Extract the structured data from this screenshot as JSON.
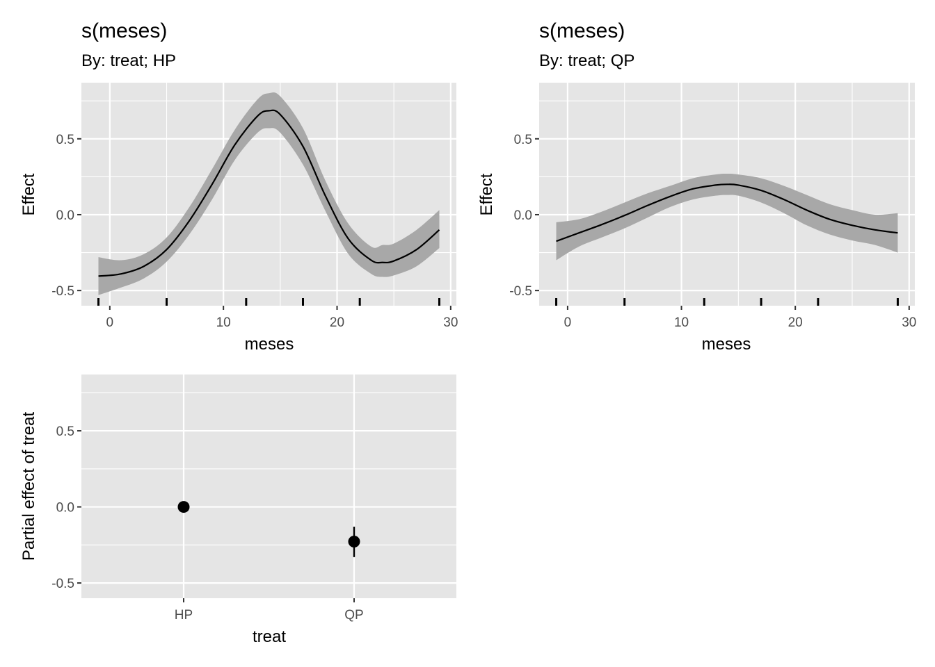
{
  "chart_data": [
    {
      "type": "line",
      "title": "s(meses)",
      "subtitle": "By: treat; HP",
      "xlabel": "meses",
      "ylabel": "Effect",
      "xlim": [
        -2.5,
        30.5
      ],
      "ylim": [
        -0.6,
        0.87
      ],
      "xticks": [
        0,
        10,
        20,
        30
      ],
      "yticks": [
        -0.5,
        0.0,
        0.5
      ],
      "ytick_labels": [
        "-0.5",
        "0.0",
        "0.5"
      ],
      "grid": true,
      "colors": {
        "panel": "#e5e5e5",
        "grid": "#ffffff",
        "ribbon": "#a8a8a8",
        "line": "#000000"
      },
      "series": [
        {
          "x": [
            -1,
            1,
            3,
            5,
            7,
            9,
            11,
            13,
            14,
            15,
            17,
            19,
            21,
            23,
            24,
            25,
            27,
            29
          ],
          "y": [
            -0.405,
            -0.39,
            -0.34,
            -0.23,
            -0.04,
            0.2,
            0.46,
            0.65,
            0.685,
            0.66,
            0.45,
            0.12,
            -0.16,
            -0.3,
            -0.315,
            -0.305,
            -0.23,
            -0.1
          ],
          "lower": [
            -0.53,
            -0.48,
            -0.42,
            -0.31,
            -0.13,
            0.1,
            0.36,
            0.54,
            0.57,
            0.54,
            0.33,
            0.02,
            -0.26,
            -0.39,
            -0.41,
            -0.4,
            -0.34,
            -0.22
          ],
          "upper": [
            -0.28,
            -0.3,
            -0.26,
            -0.15,
            0.05,
            0.3,
            0.56,
            0.76,
            0.8,
            0.78,
            0.57,
            0.22,
            -0.06,
            -0.21,
            -0.2,
            -0.19,
            -0.1,
            0.03
          ]
        }
      ],
      "rug": [
        -1,
        5,
        12,
        17,
        22,
        29
      ]
    },
    {
      "type": "line",
      "title": "s(meses)",
      "subtitle": "By: treat; QP",
      "xlabel": "meses",
      "ylabel": "Effect",
      "xlim": [
        -2.5,
        30.5
      ],
      "ylim": [
        -0.6,
        0.87
      ],
      "xticks": [
        0,
        10,
        20,
        30
      ],
      "yticks": [
        -0.5,
        0.0,
        0.5
      ],
      "ytick_labels": [
        "-0.5",
        "0.0",
        "0.5"
      ],
      "grid": true,
      "colors": {
        "panel": "#e5e5e5",
        "grid": "#ffffff",
        "ribbon": "#a8a8a8",
        "line": "#000000"
      },
      "series": [
        {
          "x": [
            -1,
            1,
            3,
            5,
            7,
            9,
            11,
            13,
            14,
            15,
            17,
            19,
            21,
            23,
            25,
            27,
            29
          ],
          "y": [
            -0.175,
            -0.12,
            -0.065,
            -0.005,
            0.06,
            0.12,
            0.17,
            0.195,
            0.2,
            0.195,
            0.16,
            0.1,
            0.03,
            -0.03,
            -0.07,
            -0.1,
            -0.12
          ],
          "lower": [
            -0.3,
            -0.21,
            -0.15,
            -0.09,
            -0.02,
            0.05,
            0.1,
            0.125,
            0.13,
            0.125,
            0.08,
            0.01,
            -0.07,
            -0.13,
            -0.17,
            -0.2,
            -0.25
          ],
          "upper": [
            -0.05,
            -0.03,
            0.02,
            0.08,
            0.14,
            0.19,
            0.24,
            0.265,
            0.27,
            0.265,
            0.24,
            0.19,
            0.13,
            0.07,
            0.03,
            0.0,
            0.01
          ]
        }
      ],
      "rug": [
        -1,
        5,
        12,
        17,
        22,
        29
      ]
    },
    {
      "type": "scatter",
      "title": "",
      "subtitle": "",
      "xlabel": "treat",
      "ylabel": "Partial effect of treat",
      "categories": [
        "HP",
        "QP"
      ],
      "ylim": [
        -0.6,
        0.87
      ],
      "yticks": [
        -0.5,
        0.0,
        0.5
      ],
      "ytick_labels": [
        "-0.5",
        "0.0",
        "0.5"
      ],
      "grid": true,
      "colors": {
        "panel": "#e5e5e5",
        "grid": "#ffffff",
        "point": "#000000"
      },
      "points": [
        {
          "category": "HP",
          "value": 0.0,
          "lower": 0.0,
          "upper": 0.0
        },
        {
          "category": "QP",
          "value": -0.228,
          "lower": -0.33,
          "upper": -0.13
        }
      ]
    }
  ]
}
